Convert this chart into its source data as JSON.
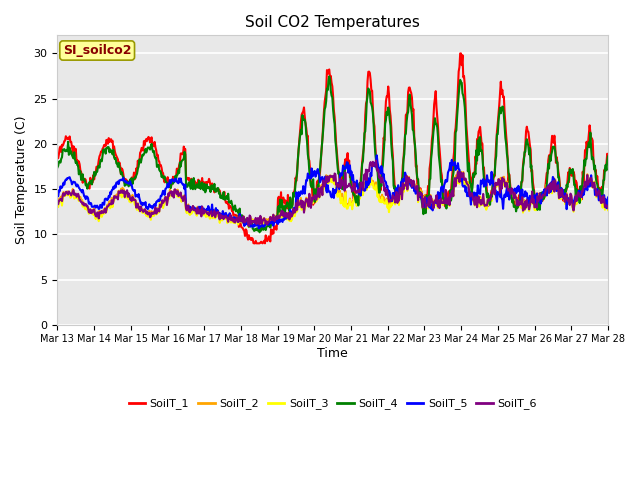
{
  "title": "Soil CO2 Temperatures",
  "xlabel": "Time",
  "ylabel": "Soil Temperature (C)",
  "ylim": [
    0,
    32
  ],
  "yticks": [
    0,
    5,
    10,
    15,
    20,
    25,
    30
  ],
  "annotation_text": "SI_soilco2",
  "annotation_facecolor": "#ffff99",
  "annotation_edgecolor": "#999900",
  "annotation_textcolor": "#880000",
  "series_colors": [
    "red",
    "orange",
    "yellow",
    "green",
    "blue",
    "purple"
  ],
  "series_labels": [
    "SoilT_1",
    "SoilT_2",
    "SoilT_3",
    "SoilT_4",
    "SoilT_5",
    "SoilT_6"
  ],
  "line_width": 1.5,
  "fig_facecolor": "#ffffff",
  "plot_bg_color": "#e8e8e8",
  "grid_color": "#d0d0d0",
  "n_points": 720,
  "x_start": 13,
  "x_end": 28,
  "xtick_positions": [
    13,
    14,
    15,
    16,
    17,
    18,
    19,
    20,
    21,
    22,
    23,
    24,
    25,
    26,
    27,
    28
  ],
  "xtick_labels": [
    "Mar 13",
    "Mar 14",
    "Mar 15",
    "Mar 16",
    "Mar 17",
    "Mar 18",
    "Mar 19",
    "Mar 20",
    "Mar 21",
    "Mar 22",
    "Mar 23",
    "Mar 24",
    "Mar 25",
    "Mar 26",
    "Mar 27",
    "Mar 28"
  ]
}
